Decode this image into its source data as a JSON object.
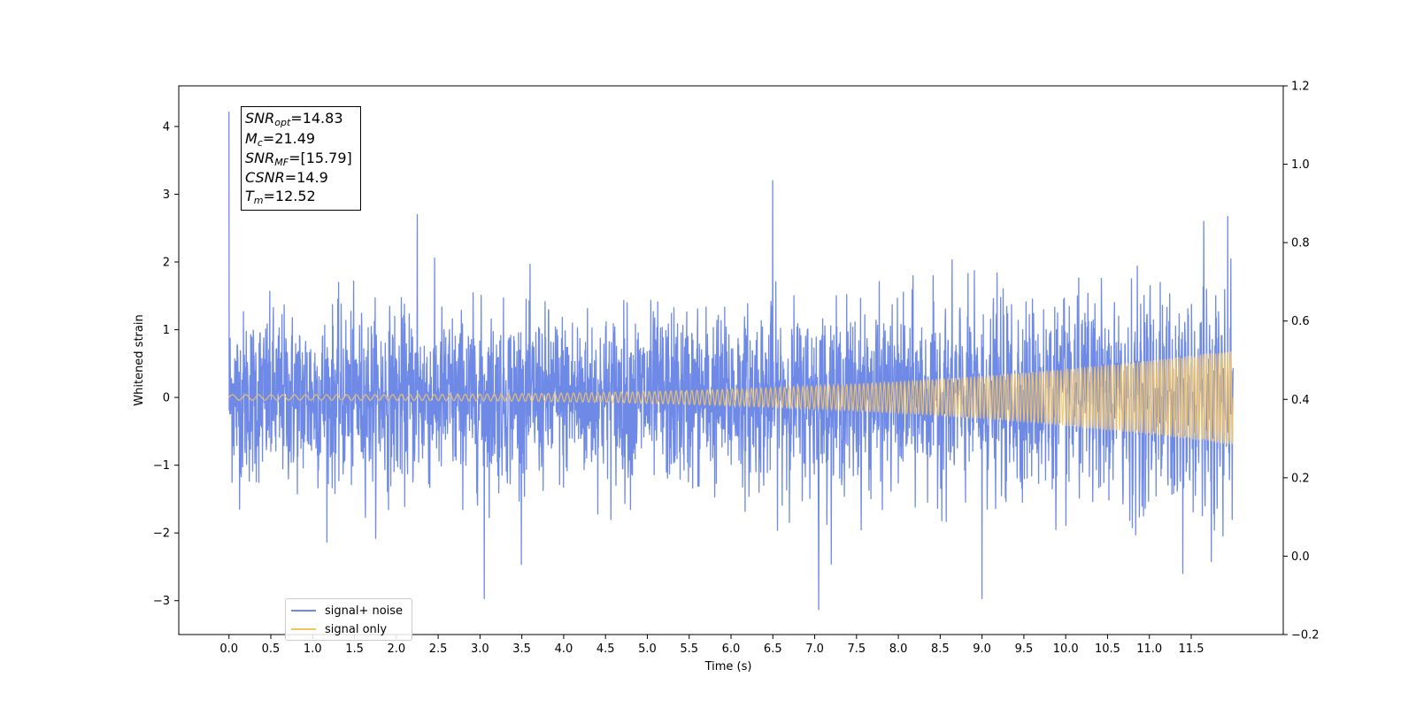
{
  "chart_data": {
    "type": "line",
    "xlabel": "Time (s)",
    "ylabel": "Whitened strain",
    "xlim": [
      -0.6,
      12.6
    ],
    "ylim": [
      -3.5,
      4.6
    ],
    "y2lim": [
      -0.2,
      1.2
    ],
    "x_ticks": [
      "0.0",
      "0.5",
      "1.0",
      "1.5",
      "2.0",
      "2.5",
      "3.0",
      "3.5",
      "4.0",
      "4.5",
      "5.0",
      "5.5",
      "6.0",
      "6.5",
      "7.0",
      "7.5",
      "8.0",
      "8.5",
      "9.0",
      "9.5",
      "10.0",
      "10.5",
      "11.0",
      "11.5"
    ],
    "y_ticks": [
      "4",
      "3",
      "2",
      "1",
      "0",
      "−1",
      "−2",
      "−3"
    ],
    "y2_ticks": [
      "1.2",
      "1.0",
      "0.8",
      "0.6",
      "0.4",
      "0.2",
      "0.0",
      "−0.2"
    ],
    "duration": 12.0,
    "grid": false,
    "legend_placement": "lower-left",
    "series": [
      {
        "name": "signal+ noise",
        "color": "#6f8ae6",
        "noise_std": 0.62,
        "envelope_start": 0.6,
        "envelope_end": 1.35,
        "peaks": [
          [
            0.0,
            4.22
          ],
          [
            6.5,
            3.2
          ],
          [
            7.05,
            -3.13
          ],
          [
            9.0,
            -2.97
          ],
          [
            3.05,
            -2.97
          ],
          [
            11.4,
            -2.6
          ],
          [
            2.25,
            2.7
          ],
          [
            11.65,
            2.6
          ]
        ]
      },
      {
        "name": "signal only",
        "color": "#f5c462",
        "amplitude_start": 0.04,
        "amplitude_end": 0.7,
        "freq_start": 6,
        "freq_end": 28
      }
    ]
  },
  "annotation": {
    "snr_opt": "=14.83",
    "mc": "=21.49",
    "snr_mf": "=[15.79]",
    "csnr": "=14.9",
    "tm": "=12.52"
  }
}
